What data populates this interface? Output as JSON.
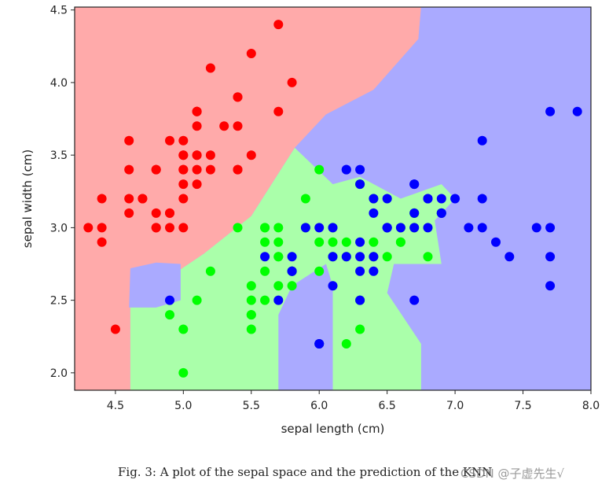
{
  "chart_data": {
    "type": "scatter",
    "xlabel": "sepal length (cm)",
    "ylabel": "sepal width (cm)",
    "xlim": [
      4.2,
      8.0
    ],
    "ylim": [
      1.88,
      4.52
    ],
    "xticks": [
      "4.5",
      "5.0",
      "5.5",
      "6.0",
      "6.5",
      "7.0",
      "7.5",
      "8.0"
    ],
    "yticks": [
      "2.0",
      "2.5",
      "3.0",
      "3.5",
      "4.0",
      "4.5"
    ],
    "grid": false,
    "colors": {
      "region_red": "#ffaaaa",
      "region_green": "#aaffaa",
      "region_blue": "#aaaaff",
      "point_red": "#ff0000",
      "point_green": "#00ff00",
      "point_blue": "#0000ff"
    },
    "regions": [
      {
        "class": "red",
        "polygon": [
          [
            4.2,
            1.88
          ],
          [
            4.61,
            1.88
          ],
          [
            4.61,
            2.55
          ],
          [
            4.88,
            2.65
          ],
          [
            5.15,
            2.82
          ],
          [
            5.5,
            3.08
          ],
          [
            5.82,
            3.55
          ],
          [
            6.05,
            3.78
          ],
          [
            6.4,
            3.95
          ],
          [
            6.73,
            4.3
          ],
          [
            6.75,
            4.52
          ],
          [
            4.2,
            4.52
          ]
        ]
      },
      {
        "class": "blue",
        "polygon": [
          [
            6.75,
            4.52
          ],
          [
            8.0,
            4.52
          ],
          [
            8.0,
            1.88
          ],
          [
            6.75,
            1.88
          ],
          [
            6.75,
            2.2
          ],
          [
            6.5,
            2.55
          ],
          [
            6.1,
            2.6
          ],
          [
            6.1,
            1.88
          ],
          [
            5.7,
            1.88
          ],
          [
            5.7,
            2.4
          ],
          [
            5.52,
            2.6
          ],
          [
            5.5,
            3.08
          ],
          [
            5.82,
            3.55
          ],
          [
            6.05,
            3.78
          ],
          [
            6.4,
            3.95
          ],
          [
            6.73,
            4.3
          ]
        ]
      },
      {
        "class": "green",
        "polygon": [
          [
            4.61,
            1.88
          ],
          [
            5.7,
            1.88
          ],
          [
            5.7,
            2.4
          ],
          [
            5.8,
            2.6
          ],
          [
            6.05,
            2.75
          ],
          [
            6.1,
            2.6
          ],
          [
            6.1,
            1.88
          ],
          [
            6.75,
            1.88
          ],
          [
            6.75,
            2.2
          ],
          [
            6.5,
            2.55
          ],
          [
            6.55,
            2.75
          ],
          [
            6.9,
            2.75
          ],
          [
            6.85,
            3.05
          ],
          [
            7.0,
            3.2
          ],
          [
            6.9,
            3.3
          ],
          [
            6.6,
            3.2
          ],
          [
            6.3,
            3.35
          ],
          [
            6.1,
            3.3
          ],
          [
            5.82,
            3.55
          ],
          [
            5.5,
            3.08
          ],
          [
            5.15,
            2.82
          ],
          [
            4.88,
            2.65
          ],
          [
            4.61,
            2.55
          ]
        ]
      },
      {
        "class": "blue",
        "polygon": [
          [
            4.61,
            2.72
          ],
          [
            4.6,
            2.45
          ],
          [
            4.8,
            2.45
          ],
          [
            4.98,
            2.5
          ],
          [
            4.98,
            2.75
          ],
          [
            4.8,
            2.76
          ]
        ]
      }
    ],
    "series": [
      {
        "class": "red",
        "points": [
          [
            5.1,
            3.5
          ],
          [
            4.9,
            3.0
          ],
          [
            4.7,
            3.2
          ],
          [
            4.6,
            3.1
          ],
          [
            5.0,
            3.6
          ],
          [
            5.4,
            3.9
          ],
          [
            4.6,
            3.4
          ],
          [
            5.0,
            3.4
          ],
          [
            4.4,
            2.9
          ],
          [
            4.9,
            3.1
          ],
          [
            5.4,
            3.7
          ],
          [
            4.8,
            3.4
          ],
          [
            4.8,
            3.0
          ],
          [
            4.3,
            3.0
          ],
          [
            5.8,
            4.0
          ],
          [
            5.7,
            4.4
          ],
          [
            5.4,
            3.9
          ],
          [
            5.1,
            3.5
          ],
          [
            5.7,
            3.8
          ],
          [
            5.1,
            3.8
          ],
          [
            5.4,
            3.4
          ],
          [
            5.1,
            3.7
          ],
          [
            4.6,
            3.6
          ],
          [
            5.1,
            3.3
          ],
          [
            4.8,
            3.4
          ],
          [
            5.0,
            3.0
          ],
          [
            5.0,
            3.4
          ],
          [
            5.2,
            3.5
          ],
          [
            5.2,
            3.4
          ],
          [
            4.7,
            3.2
          ],
          [
            4.8,
            3.1
          ],
          [
            5.4,
            3.4
          ],
          [
            5.2,
            4.1
          ],
          [
            5.5,
            4.2
          ],
          [
            4.9,
            3.1
          ],
          [
            5.0,
            3.2
          ],
          [
            5.5,
            3.5
          ],
          [
            4.9,
            3.6
          ],
          [
            4.4,
            3.0
          ],
          [
            5.1,
            3.4
          ],
          [
            5.0,
            3.5
          ],
          [
            4.5,
            2.3
          ],
          [
            4.4,
            3.2
          ],
          [
            5.0,
            3.5
          ],
          [
            5.1,
            3.8
          ],
          [
            4.8,
            3.0
          ],
          [
            5.1,
            3.8
          ],
          [
            4.6,
            3.2
          ],
          [
            5.3,
            3.7
          ],
          [
            5.0,
            3.3
          ]
        ]
      },
      {
        "class": "green",
        "points": [
          [
            6.4,
            3.2
          ],
          [
            5.5,
            2.3
          ],
          [
            6.5,
            2.8
          ],
          [
            5.7,
            2.8
          ],
          [
            6.3,
            3.3
          ],
          [
            4.9,
            2.4
          ],
          [
            6.6,
            2.9
          ],
          [
            5.2,
            2.7
          ],
          [
            5.0,
            2.0
          ],
          [
            5.9,
            3.0
          ],
          [
            6.0,
            2.2
          ],
          [
            6.1,
            2.9
          ],
          [
            5.6,
            2.9
          ],
          [
            6.7,
            3.1
          ],
          [
            5.6,
            3.0
          ],
          [
            5.8,
            2.7
          ],
          [
            6.2,
            2.2
          ],
          [
            5.6,
            2.5
          ],
          [
            5.9,
            3.2
          ],
          [
            6.1,
            2.8
          ],
          [
            6.3,
            2.5
          ],
          [
            6.4,
            2.9
          ],
          [
            6.6,
            3.0
          ],
          [
            6.8,
            2.8
          ],
          [
            6.7,
            3.0
          ],
          [
            6.0,
            2.9
          ],
          [
            5.7,
            2.6
          ],
          [
            5.5,
            2.4
          ],
          [
            5.5,
            2.4
          ],
          [
            5.8,
            2.7
          ],
          [
            6.0,
            2.7
          ],
          [
            5.4,
            3.0
          ],
          [
            6.0,
            3.4
          ],
          [
            6.7,
            3.1
          ],
          [
            6.3,
            2.3
          ],
          [
            5.6,
            3.0
          ],
          [
            5.5,
            2.5
          ],
          [
            5.5,
            2.6
          ],
          [
            6.1,
            3.0
          ],
          [
            5.8,
            2.6
          ],
          [
            5.0,
            2.3
          ],
          [
            5.6,
            2.7
          ],
          [
            5.7,
            3.0
          ],
          [
            5.7,
            2.9
          ],
          [
            6.2,
            2.9
          ],
          [
            5.1,
            2.5
          ],
          [
            5.7,
            2.8
          ],
          [
            6.4,
            2.8
          ],
          [
            6.9,
            3.1
          ],
          [
            6.6,
            2.9
          ],
          [
            6.2,
            2.8
          ],
          [
            6.9,
            3.1
          ]
        ]
      },
      {
        "class": "blue",
        "points": [
          [
            7.0,
            3.2
          ],
          [
            6.9,
            3.1
          ],
          [
            6.3,
            3.3
          ],
          [
            5.8,
            2.7
          ],
          [
            7.1,
            3.0
          ],
          [
            6.3,
            2.9
          ],
          [
            6.5,
            3.0
          ],
          [
            7.6,
            3.0
          ],
          [
            7.3,
            2.9
          ],
          [
            6.7,
            2.5
          ],
          [
            7.2,
            3.6
          ],
          [
            6.5,
            3.2
          ],
          [
            6.4,
            2.7
          ],
          [
            6.8,
            3.0
          ],
          [
            5.7,
            2.5
          ],
          [
            5.8,
            2.8
          ],
          [
            6.4,
            3.2
          ],
          [
            6.5,
            3.0
          ],
          [
            7.7,
            3.8
          ],
          [
            7.7,
            2.6
          ],
          [
            6.0,
            2.2
          ],
          [
            6.9,
            3.2
          ],
          [
            5.6,
            2.8
          ],
          [
            7.7,
            2.8
          ],
          [
            6.3,
            2.7
          ],
          [
            6.7,
            3.3
          ],
          [
            7.2,
            3.2
          ],
          [
            6.2,
            2.8
          ],
          [
            6.1,
            3.0
          ],
          [
            6.4,
            2.8
          ],
          [
            7.2,
            3.0
          ],
          [
            7.4,
            2.8
          ],
          [
            7.9,
            3.8
          ],
          [
            6.3,
            2.8
          ],
          [
            6.1,
            2.6
          ],
          [
            7.7,
            3.0
          ],
          [
            6.3,
            3.4
          ],
          [
            6.4,
            3.1
          ],
          [
            6.0,
            3.0
          ],
          [
            6.9,
            3.1
          ],
          [
            6.7,
            3.1
          ],
          [
            5.8,
            2.7
          ],
          [
            6.8,
            3.2
          ],
          [
            6.7,
            3.0
          ],
          [
            6.3,
            2.5
          ],
          [
            6.5,
            3.0
          ],
          [
            6.2,
            3.4
          ],
          [
            5.9,
            3.0
          ],
          [
            6.1,
            2.8
          ],
          [
            4.9,
            2.5
          ],
          [
            6.0,
            2.2
          ],
          [
            6.6,
            3.0
          ],
          [
            6.8,
            3.2
          ],
          [
            6.7,
            3.3
          ],
          [
            6.2,
            3.4
          ]
        ]
      }
    ]
  },
  "caption": "Fig. 3: A plot of the sepal space and the prediction of the KNN",
  "watermark": "CSDN @子虚先生√"
}
